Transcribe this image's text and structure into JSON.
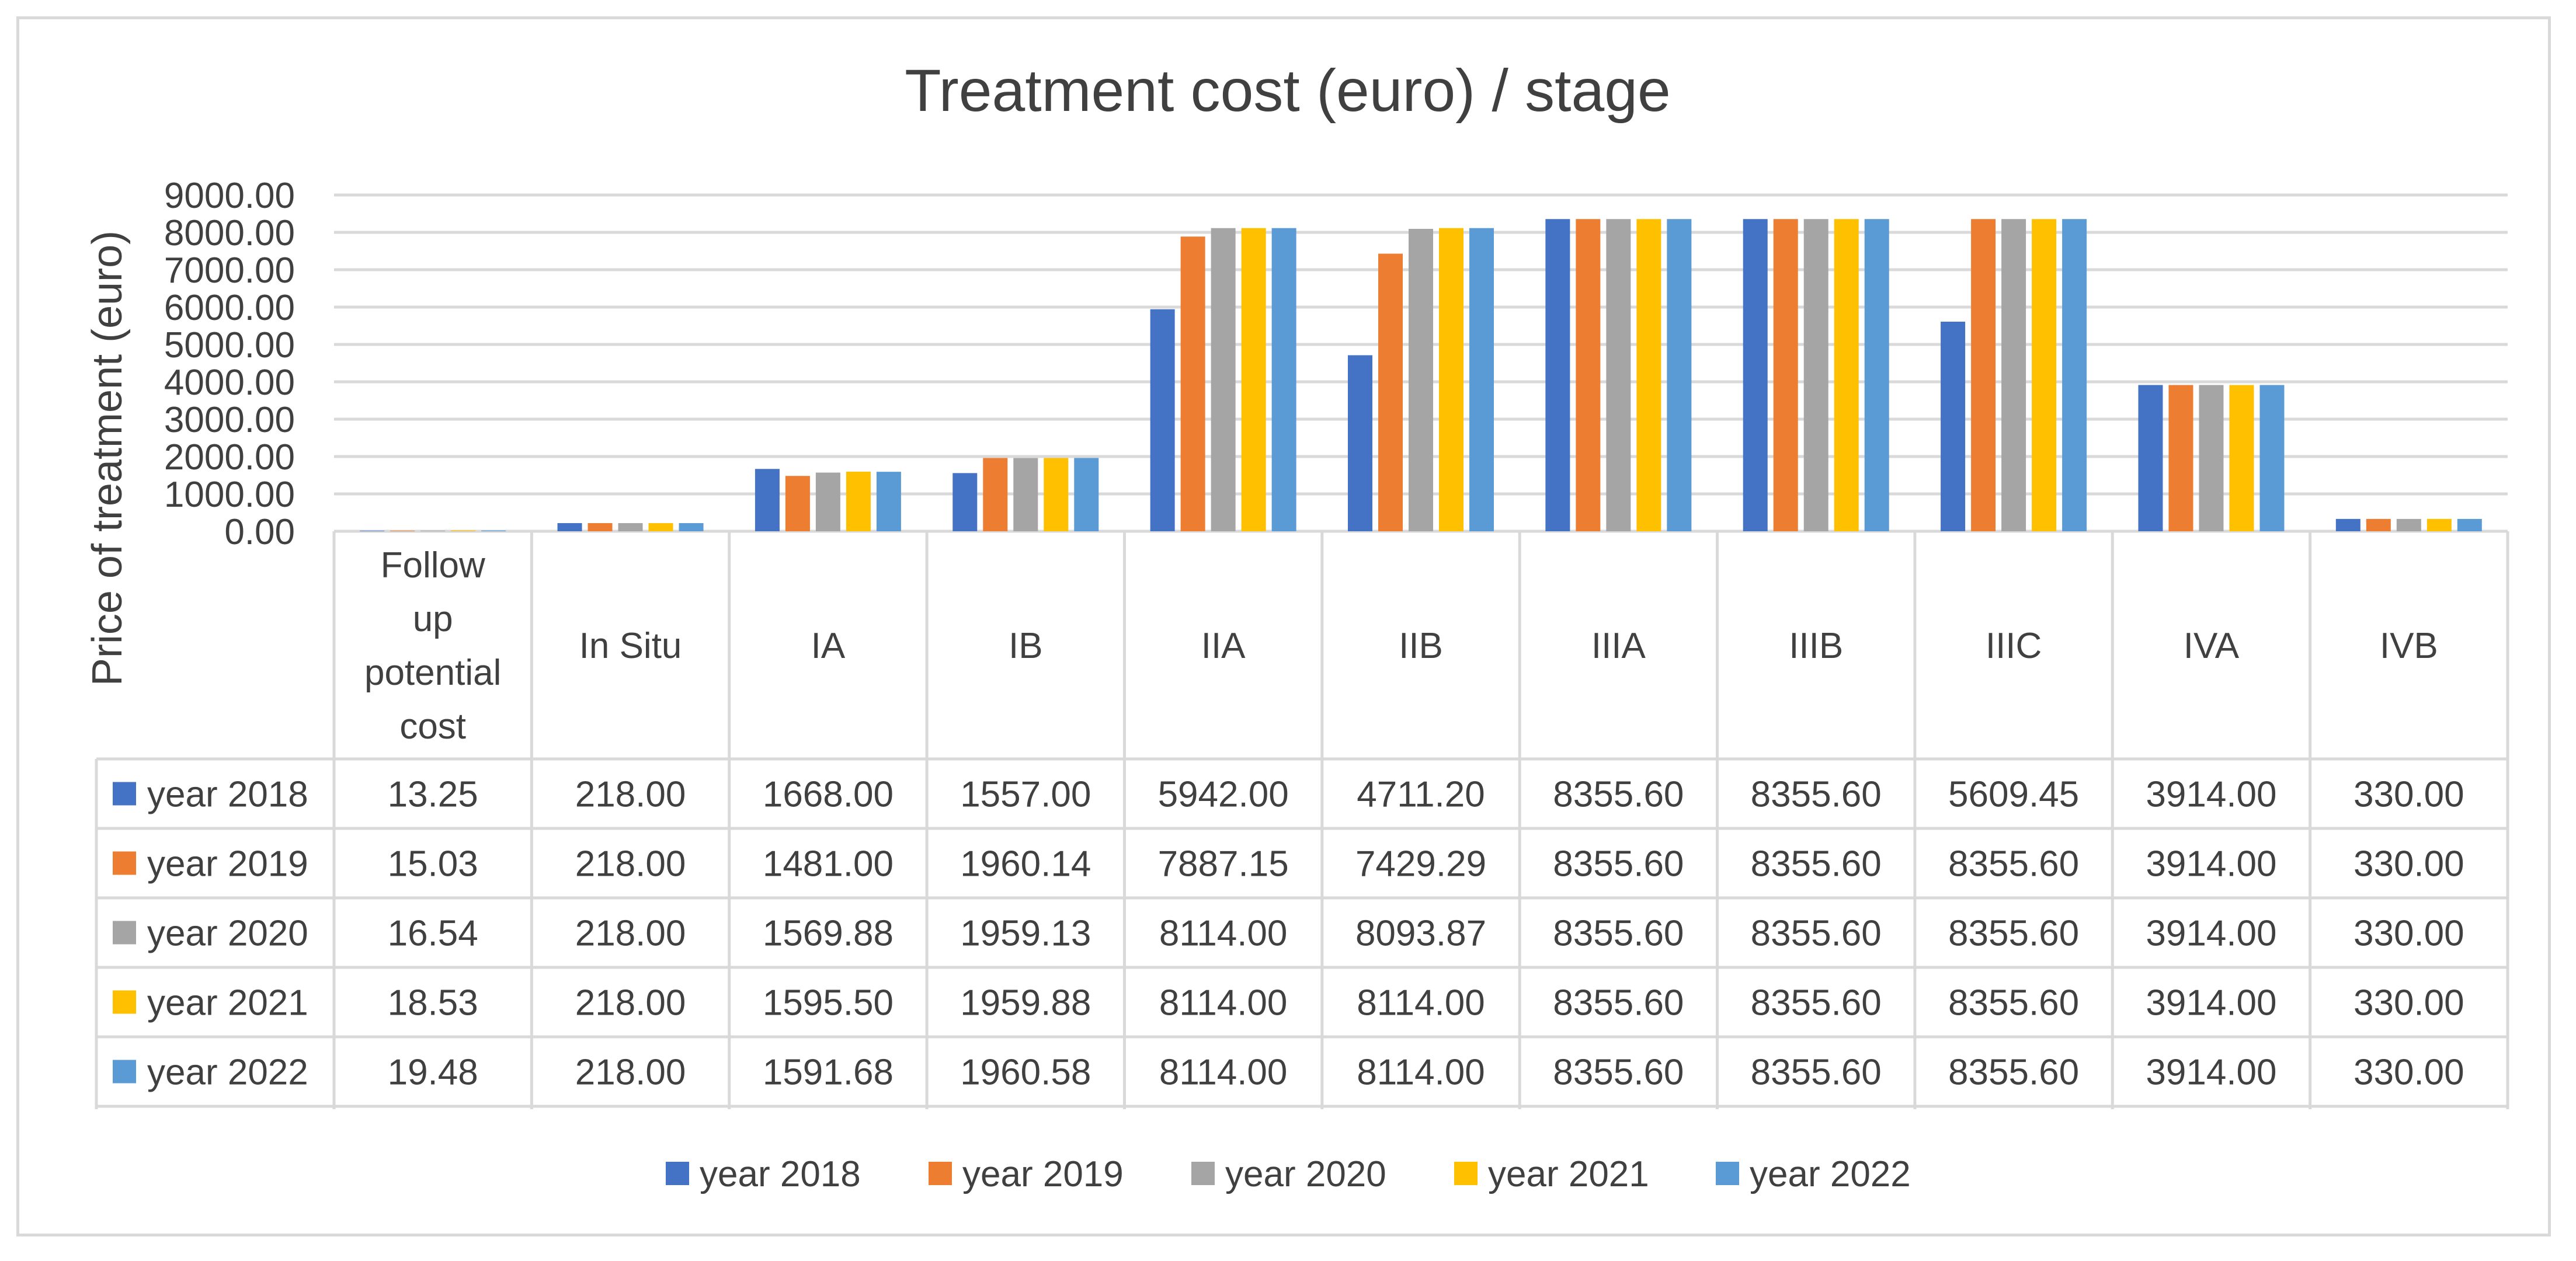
{
  "chart_data": {
    "type": "bar",
    "title": "Treatment cost (euro) / stage",
    "xlabel": "",
    "ylabel": "Price of treatment (euro)",
    "ylim": [
      0,
      9000
    ],
    "yticks": [
      "0.00",
      "1000.00",
      "2000.00",
      "3000.00",
      "4000.00",
      "5000.00",
      "6000.00",
      "7000.00",
      "8000.00",
      "9000.00"
    ],
    "grid": true,
    "legend": "bottom",
    "categories": [
      "Follow up potential cost",
      "In Situ",
      "IA",
      "IB",
      "IIA",
      "IIB",
      "IIIA",
      "IIIB",
      "IIIC",
      "IVA",
      "IVB"
    ],
    "category_lines": [
      [
        "Follow",
        "up",
        "potential",
        "cost"
      ],
      [
        "In Situ"
      ],
      [
        "IA"
      ],
      [
        "IB"
      ],
      [
        "IIA"
      ],
      [
        "IIB"
      ],
      [
        "IIIA"
      ],
      [
        "IIIB"
      ],
      [
        "IIIC"
      ],
      [
        "IVA"
      ],
      [
        "IVB"
      ]
    ],
    "series": [
      {
        "name": "year 2018",
        "color": "#4472c4",
        "values": [
          13.25,
          218,
          1668,
          1557,
          5942,
          4711.2,
          8355.6,
          8355.6,
          5609.45,
          3914,
          330
        ],
        "labels": [
          "13.25",
          "218.00",
          "1668.00",
          "1557.00",
          "5942.00",
          "4711.20",
          "8355.60",
          "8355.60",
          "5609.45",
          "3914.00",
          "330.00"
        ]
      },
      {
        "name": "year 2019",
        "color": "#ed7d31",
        "values": [
          15.03,
          218,
          1481,
          1960.14,
          7887.15,
          7429.29,
          8355.6,
          8355.6,
          8355.6,
          3914,
          330
        ],
        "labels": [
          "15.03",
          "218.00",
          "1481.00",
          "1960.14",
          "7887.15",
          "7429.29",
          "8355.60",
          "8355.60",
          "8355.60",
          "3914.00",
          "330.00"
        ]
      },
      {
        "name": "year 2020",
        "color": "#a5a5a5",
        "values": [
          16.54,
          218,
          1569.88,
          1959.13,
          8114,
          8093.87,
          8355.6,
          8355.6,
          8355.6,
          3914,
          330
        ],
        "labels": [
          "16.54",
          "218.00",
          "1569.88",
          "1959.13",
          "8114.00",
          "8093.87",
          "8355.60",
          "8355.60",
          "8355.60",
          "3914.00",
          "330.00"
        ]
      },
      {
        "name": "year 2021",
        "color": "#ffc000",
        "values": [
          18.53,
          218,
          1595.5,
          1959.88,
          8114,
          8114,
          8355.6,
          8355.6,
          8355.6,
          3914,
          330
        ],
        "labels": [
          "18.53",
          "218.00",
          "1595.50",
          "1959.88",
          "8114.00",
          "8114.00",
          "8355.60",
          "8355.60",
          "8355.60",
          "3914.00",
          "330.00"
        ]
      },
      {
        "name": "year 2022",
        "color": "#5b9bd5",
        "values": [
          19.48,
          218,
          1591.68,
          1960.58,
          8114,
          8114,
          8355.6,
          8355.6,
          8355.6,
          3914,
          330
        ],
        "labels": [
          "19.48",
          "218.00",
          "1591.68",
          "1960.58",
          "8114.00",
          "8114.00",
          "8355.60",
          "8355.60",
          "8355.60",
          "3914.00",
          "330.00"
        ]
      }
    ]
  }
}
